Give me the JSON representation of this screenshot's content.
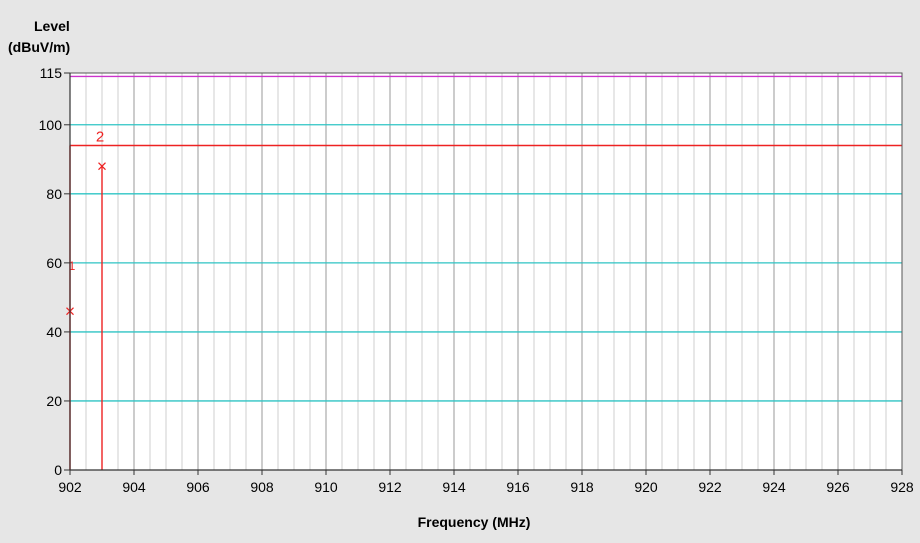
{
  "chart_data": {
    "type": "line",
    "title": "",
    "ylabel_line1": "Level",
    "ylabel_line2": "(dBuV/m)",
    "xlabel": "Frequency (MHz)",
    "xlim": [
      902,
      928
    ],
    "ylim": [
      0,
      115
    ],
    "x_ticks": [
      "902",
      "904",
      "906",
      "908",
      "910",
      "912",
      "914",
      "916",
      "918",
      "920",
      "922",
      "924",
      "926",
      "928"
    ],
    "y_ticks": [
      "0",
      "20",
      "40",
      "60",
      "80",
      "100",
      "115"
    ],
    "x_minor_step": 0.5,
    "y_gridlines": [
      20,
      40,
      60,
      80,
      100
    ],
    "grid": true,
    "limit_lines": [
      {
        "value": 114,
        "color": "#cc33cc"
      },
      {
        "value": 94,
        "color": "#ee2222"
      }
    ],
    "series": [
      {
        "x": [
          902.0,
          902.0
        ],
        "y": [
          0,
          94
        ],
        "color": "#ee2222"
      },
      {
        "x": [
          903.0,
          903.0
        ],
        "y": [
          0,
          88
        ],
        "color": "#ee2222"
      }
    ],
    "markers": [
      {
        "label": "1",
        "x": 902.0,
        "y": 46
      },
      {
        "label": "2",
        "x": 903.0,
        "y": 88
      }
    ],
    "colors": {
      "background": "#e6e6e6",
      "plot_background": "#ffffff",
      "major_grid": "#9a9a9a",
      "minor_grid": "#cfcfcf",
      "h_grid": "#2ec4c4",
      "signal": "#ee2222",
      "axis": "#555555"
    }
  }
}
